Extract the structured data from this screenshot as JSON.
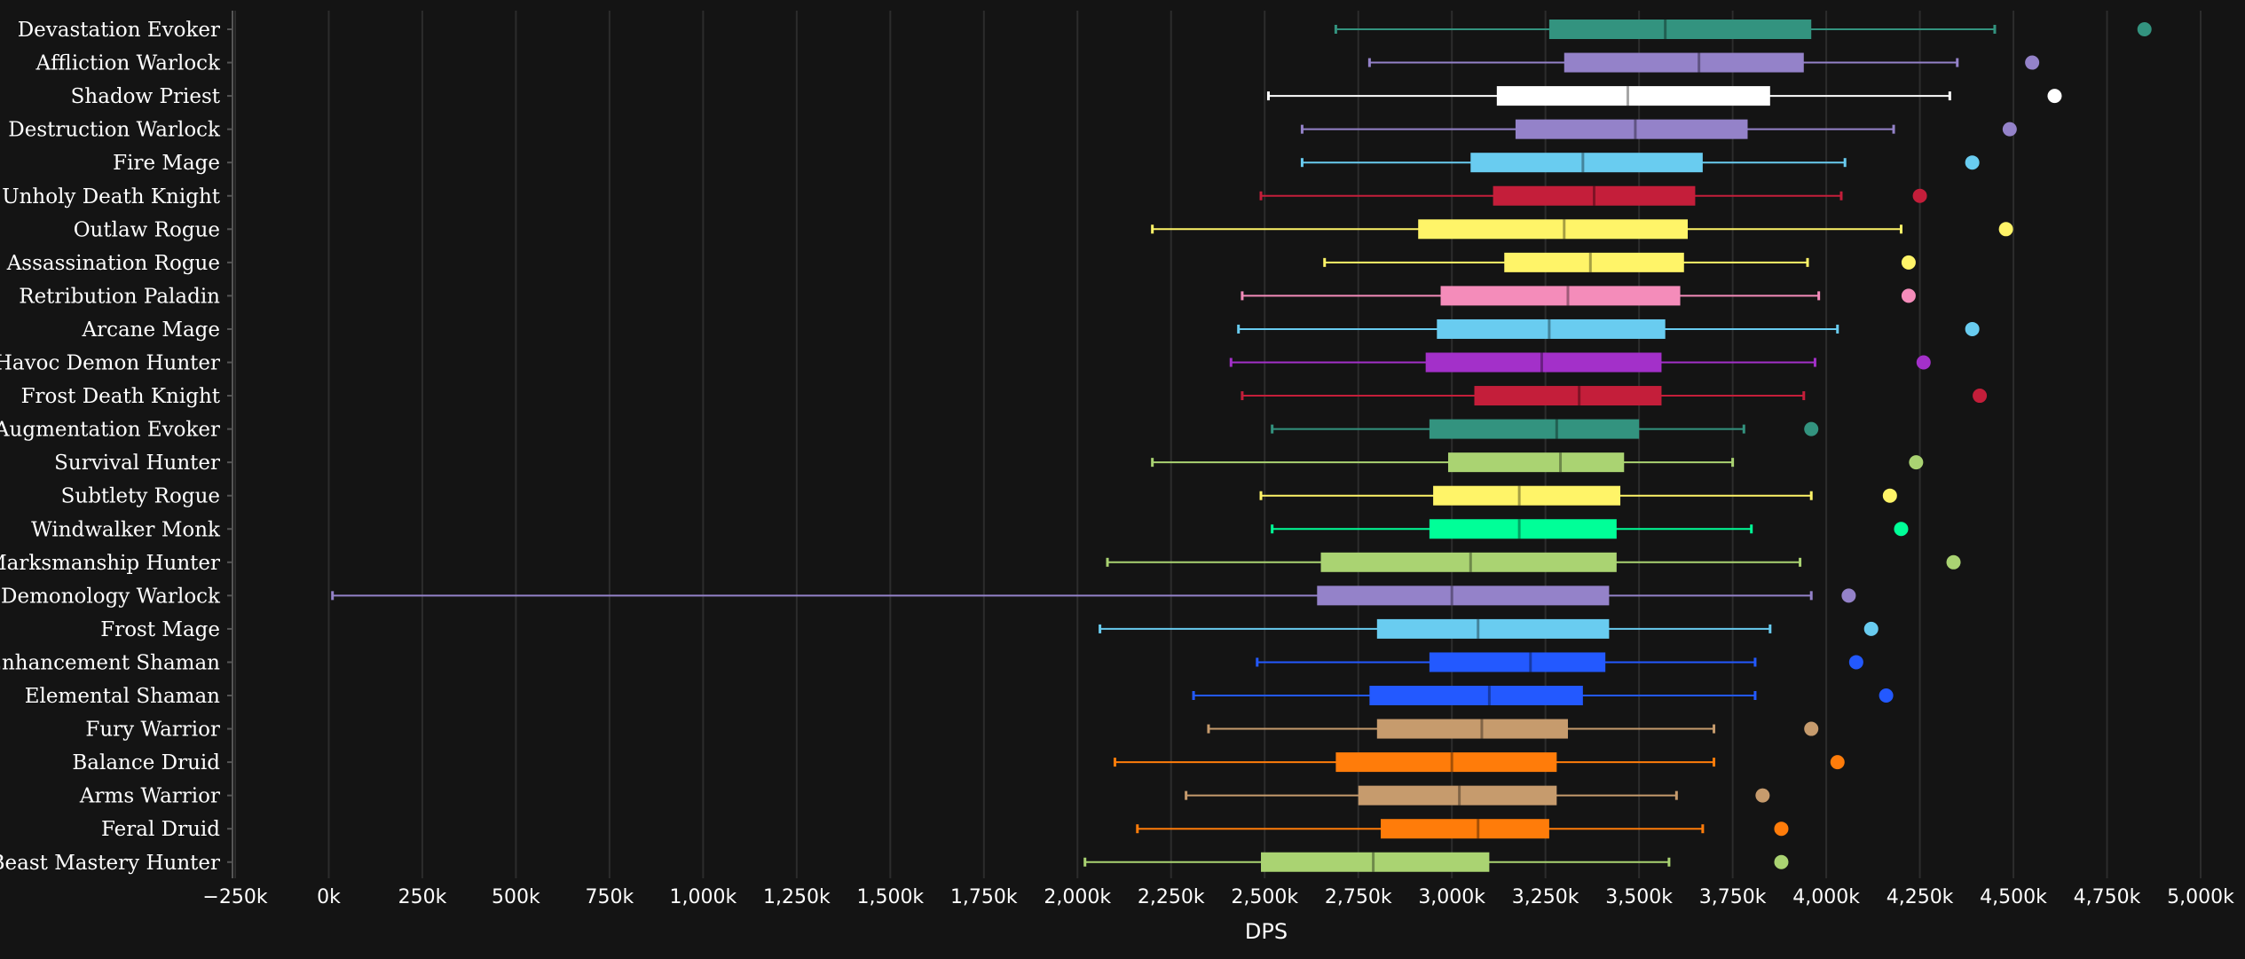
{
  "chart_data": {
    "type": "boxplot",
    "xlabel": "DPS",
    "xlim": [
      -250,
      5000
    ],
    "x_ticks": [
      -250,
      0,
      250,
      500,
      750,
      1000,
      1250,
      1500,
      1750,
      2000,
      2250,
      2500,
      2750,
      3000,
      3250,
      3500,
      3750,
      4000,
      4250,
      4500,
      4750,
      5000
    ],
    "x_tick_labels": [
      "−250k",
      "0k",
      "250k",
      "500k",
      "750k",
      "1,000k",
      "1,250k",
      "1,500k",
      "1,750k",
      "2,000k",
      "2,250k",
      "2,500k",
      "2,750k",
      "3,000k",
      "3,250k",
      "3,500k",
      "3,750k",
      "4,000k",
      "4,250k",
      "4,500k",
      "4,750k",
      "5,000k"
    ],
    "value_unit": "k DPS",
    "grid": true,
    "series": [
      {
        "name": "Devastation Evoker",
        "color": "#33937f",
        "min": 2690,
        "q1": 3260,
        "median": 3570,
        "q3": 3960,
        "max": 4450,
        "outlier": 4850
      },
      {
        "name": "Affliction Warlock",
        "color": "#9482c9",
        "min": 2780,
        "q1": 3300,
        "median": 3660,
        "q3": 3940,
        "max": 4350,
        "outlier": 4550
      },
      {
        "name": "Shadow Priest",
        "color": "#ffffff",
        "min": 2510,
        "q1": 3120,
        "median": 3470,
        "q3": 3850,
        "max": 4330,
        "outlier": 4610
      },
      {
        "name": "Destruction Warlock",
        "color": "#9482c9",
        "min": 2600,
        "q1": 3170,
        "median": 3490,
        "q3": 3790,
        "max": 4180,
        "outlier": 4490
      },
      {
        "name": "Fire Mage",
        "color": "#69ccf0",
        "min": 2600,
        "q1": 3050,
        "median": 3350,
        "q3": 3670,
        "max": 4050,
        "outlier": 4390
      },
      {
        "name": "Unholy Death Knight",
        "color": "#c41e3a",
        "min": 2490,
        "q1": 3110,
        "median": 3380,
        "q3": 3650,
        "max": 4040,
        "outlier": 4250
      },
      {
        "name": "Outlaw Rogue",
        "color": "#fff468",
        "min": 2200,
        "q1": 2910,
        "median": 3300,
        "q3": 3630,
        "max": 4200,
        "outlier": 4480
      },
      {
        "name": "Assassination Rogue",
        "color": "#fff468",
        "min": 2660,
        "q1": 3140,
        "median": 3370,
        "q3": 3620,
        "max": 3950,
        "outlier": 4220
      },
      {
        "name": "Retribution Paladin",
        "color": "#f48cba",
        "min": 2440,
        "q1": 2970,
        "median": 3310,
        "q3": 3610,
        "max": 3980,
        "outlier": 4220
      },
      {
        "name": "Arcane Mage",
        "color": "#69ccf0",
        "min": 2430,
        "q1": 2960,
        "median": 3260,
        "q3": 3570,
        "max": 4030,
        "outlier": 4390
      },
      {
        "name": "Havoc Demon Hunter",
        "color": "#a330c9",
        "min": 2410,
        "q1": 2930,
        "median": 3240,
        "q3": 3560,
        "max": 3970,
        "outlier": 4260
      },
      {
        "name": "Frost Death Knight",
        "color": "#c41e3a",
        "min": 2440,
        "q1": 3060,
        "median": 3340,
        "q3": 3560,
        "max": 3940,
        "outlier": 4410
      },
      {
        "name": "Augmentation Evoker",
        "color": "#33937f",
        "min": 2520,
        "q1": 2940,
        "median": 3280,
        "q3": 3500,
        "max": 3780,
        "outlier": 3960
      },
      {
        "name": "Survival Hunter",
        "color": "#aad372",
        "min": 2200,
        "q1": 2990,
        "median": 3290,
        "q3": 3460,
        "max": 3750,
        "outlier": 4240
      },
      {
        "name": "Subtlety Rogue",
        "color": "#fff468",
        "min": 2490,
        "q1": 2950,
        "median": 3180,
        "q3": 3450,
        "max": 3960,
        "outlier": 4170
      },
      {
        "name": "Windwalker Monk",
        "color": "#00ff98",
        "min": 2520,
        "q1": 2940,
        "median": 3180,
        "q3": 3440,
        "max": 3800,
        "outlier": 4200
      },
      {
        "name": "Marksmanship Hunter",
        "color": "#aad372",
        "min": 2080,
        "q1": 2650,
        "median": 3050,
        "q3": 3440,
        "max": 3930,
        "outlier": 4340
      },
      {
        "name": "Demonology Warlock",
        "color": "#9482c9",
        "min": 10,
        "q1": 2640,
        "median": 3000,
        "q3": 3420,
        "max": 3960,
        "outlier": 4060
      },
      {
        "name": "Frost Mage",
        "color": "#69ccf0",
        "min": 2060,
        "q1": 2800,
        "median": 3070,
        "q3": 3420,
        "max": 3850,
        "outlier": 4120
      },
      {
        "name": "Enhancement Shaman",
        "color": "#2359ff",
        "min": 2480,
        "q1": 2940,
        "median": 3210,
        "q3": 3410,
        "max": 3810,
        "outlier": 4080
      },
      {
        "name": "Elemental Shaman",
        "color": "#2359ff",
        "min": 2310,
        "q1": 2780,
        "median": 3100,
        "q3": 3350,
        "max": 3810,
        "outlier": 4160
      },
      {
        "name": "Fury Warrior",
        "color": "#c69b6d",
        "min": 2350,
        "q1": 2800,
        "median": 3080,
        "q3": 3310,
        "max": 3700,
        "outlier": 3960
      },
      {
        "name": "Balance Druid",
        "color": "#ff7c0a",
        "min": 2100,
        "q1": 2690,
        "median": 3000,
        "q3": 3280,
        "max": 3700,
        "outlier": 4030
      },
      {
        "name": "Arms Warrior",
        "color": "#c69b6d",
        "min": 2290,
        "q1": 2750,
        "median": 3020,
        "q3": 3280,
        "max": 3600,
        "outlier": 3830
      },
      {
        "name": "Feral Druid",
        "color": "#ff7c0a",
        "min": 2160,
        "q1": 2810,
        "median": 3070,
        "q3": 3260,
        "max": 3670,
        "outlier": 3880
      },
      {
        "name": "Beast Mastery Hunter",
        "color": "#aad372",
        "min": 2020,
        "q1": 2490,
        "median": 2790,
        "q3": 3100,
        "max": 3580,
        "outlier": 3880
      }
    ]
  }
}
